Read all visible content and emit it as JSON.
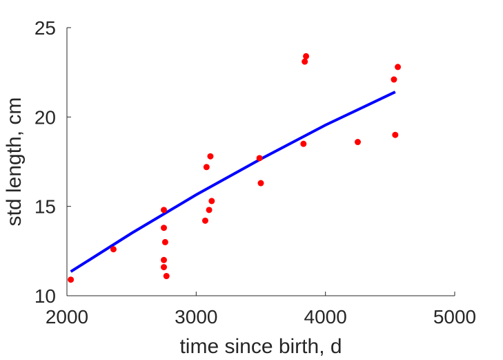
{
  "chart_data": {
    "type": "scatter",
    "xlabel": "time since birth, d",
    "ylabel": "std length, cm",
    "xlim": [
      2000,
      5000
    ],
    "ylim": [
      10,
      25
    ],
    "xticks": [
      2000,
      3000,
      4000,
      5000
    ],
    "yticks": [
      10,
      15,
      20,
      25
    ],
    "xtick_labels": [
      "2000",
      "3000",
      "4000",
      "5000"
    ],
    "ytick_labels": [
      "10",
      "15",
      "20",
      "25"
    ],
    "grid": false,
    "legend": "none",
    "series": [
      {
        "kind": "points",
        "color": "#ff0000",
        "x": [
          2030,
          2360,
          2750,
          2750,
          2760,
          2750,
          2750,
          2770,
          3070,
          3080,
          3100,
          3110,
          3120,
          3490,
          3500,
          3830,
          3840,
          3850,
          4250,
          4530,
          4540,
          4560
        ],
        "y": [
          10.9,
          12.6,
          14.8,
          13.8,
          13.0,
          12.0,
          11.6,
          11.1,
          14.2,
          17.2,
          14.8,
          17.8,
          15.3,
          17.7,
          16.3,
          18.5,
          23.1,
          23.4,
          18.6,
          22.1,
          19.0,
          22.8
        ]
      },
      {
        "kind": "fit-line",
        "color": "#0000ff",
        "x": [
          2030,
          2500,
          3000,
          3500,
          4000,
          4540
        ],
        "y": [
          11.35,
          13.5,
          15.65,
          17.65,
          19.55,
          21.4
        ]
      }
    ]
  }
}
